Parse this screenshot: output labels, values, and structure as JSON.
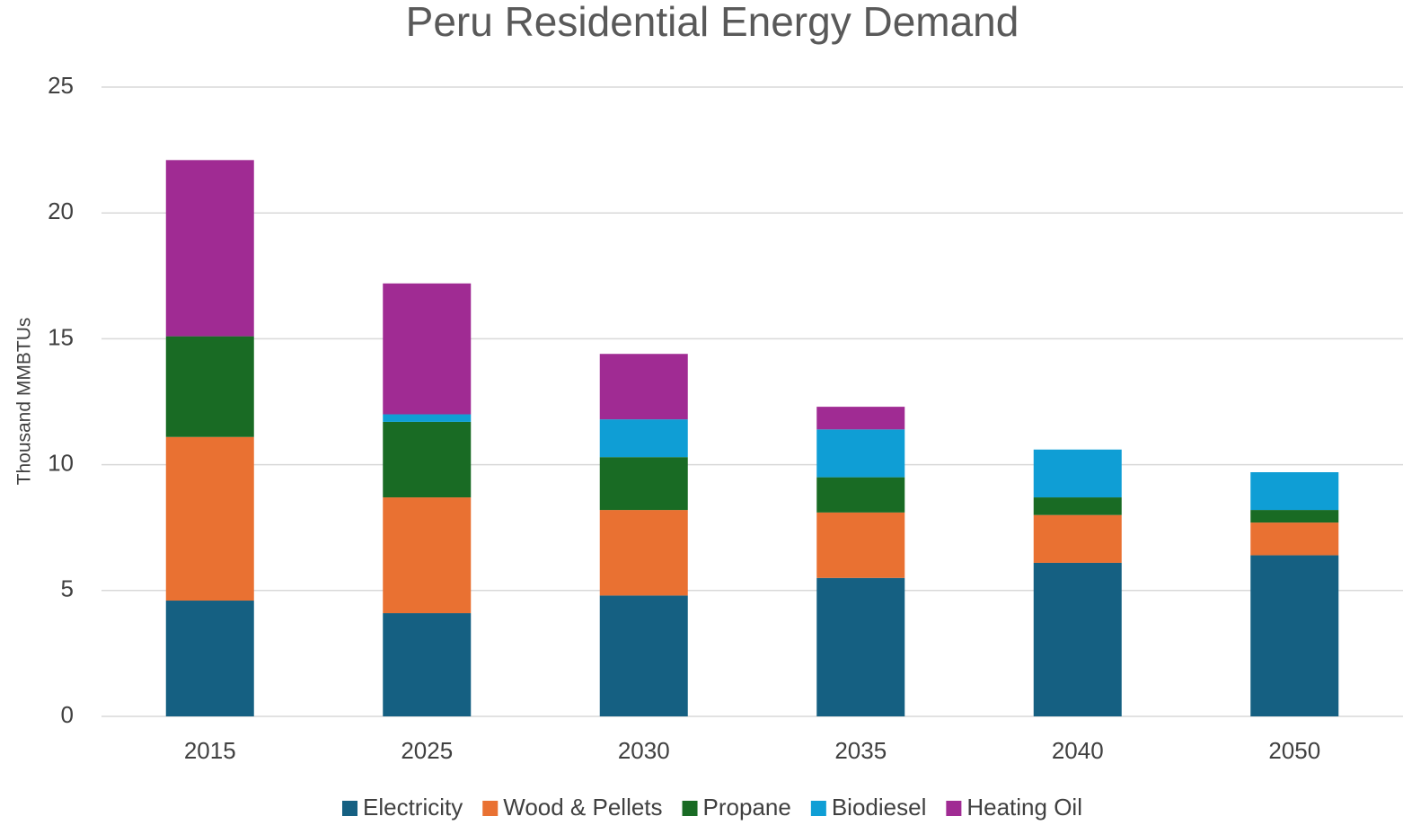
{
  "chart_data": {
    "type": "stacked_bar",
    "title": "Peru Residential Energy Demand",
    "y_label": "Thousand MMBTUs",
    "categories": [
      "2015",
      "2025",
      "2030",
      "2035",
      "2040",
      "2050"
    ],
    "series": [
      {
        "name": "Electricity",
        "color": "#156082",
        "values": [
          4.6,
          4.1,
          4.8,
          5.5,
          6.1,
          6.4
        ]
      },
      {
        "name": "Wood & Pellets",
        "color": "#e97132",
        "values": [
          6.5,
          4.6,
          3.4,
          2.6,
          1.9,
          1.3
        ]
      },
      {
        "name": "Propane",
        "color": "#196b24",
        "values": [
          4.0,
          3.0,
          2.1,
          1.4,
          0.7,
          0.5
        ]
      },
      {
        "name": "Biodiesel",
        "color": "#0f9ed5",
        "values": [
          0,
          0.3,
          1.5,
          1.9,
          1.9,
          1.5
        ]
      },
      {
        "name": "Heating Oil",
        "color": "#a02b93",
        "values": [
          7.0,
          5.2,
          2.6,
          0.9,
          0,
          0
        ]
      }
    ],
    "ylim": [
      0,
      25
    ],
    "yticks": [
      0,
      5,
      10,
      15,
      20,
      25
    ],
    "grid": true,
    "legend": "bottom"
  }
}
